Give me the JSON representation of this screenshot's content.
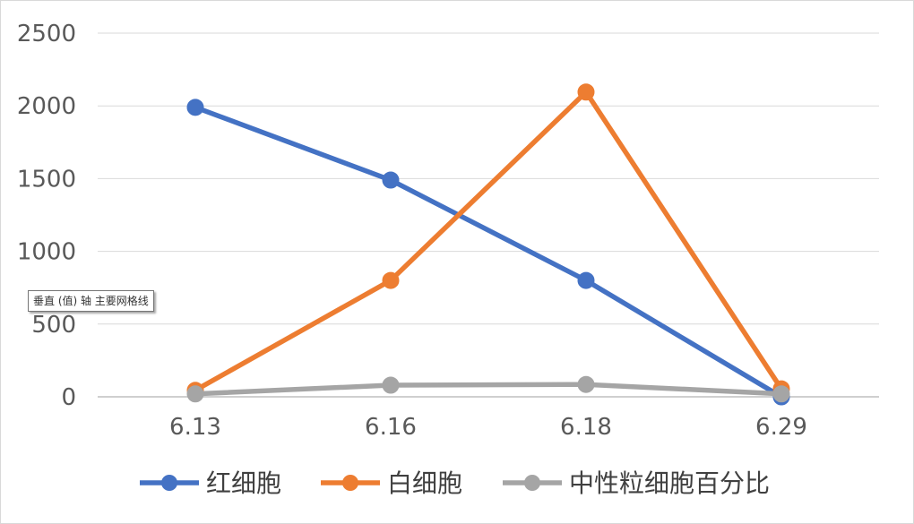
{
  "chart_data": {
    "type": "line",
    "categories": [
      "6.13",
      "6.16",
      "6.18",
      "6.29"
    ],
    "series": [
      {
        "name": "红细胞",
        "values": [
          1990,
          1490,
          800,
          0
        ],
        "color": "#4472C4"
      },
      {
        "name": "白细胞",
        "values": [
          45,
          800,
          2095,
          55
        ],
        "color": "#ED7D31"
      },
      {
        "name": "中性粒细胞百分比",
        "values": [
          20,
          80,
          85,
          20
        ],
        "color": "#A5A5A5"
      }
    ],
    "y_ticks": [
      "0",
      "500",
      "1000",
      "1500",
      "2000",
      "2500"
    ],
    "ylim": [
      0,
      2500
    ],
    "grid": true,
    "legend_position": "bottom",
    "tooltip": "垂直 (值) 轴 主要网格线"
  }
}
